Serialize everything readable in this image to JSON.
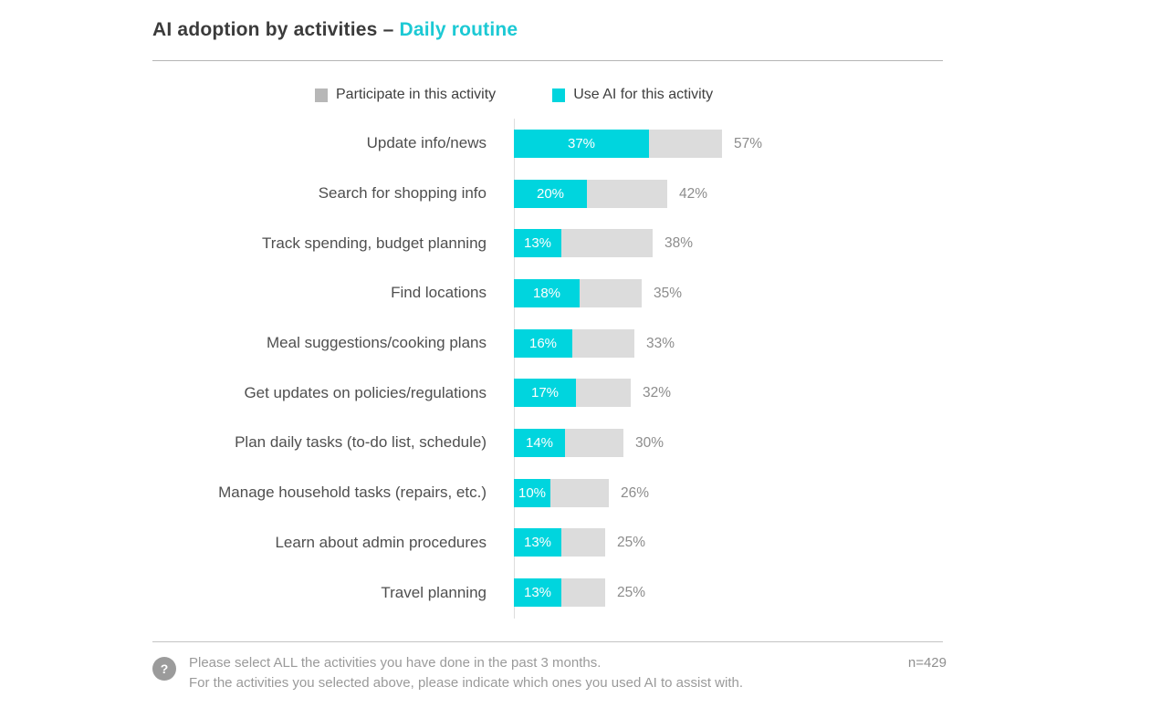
{
  "title": {
    "main": "AI adoption by activities –",
    "highlight": "Daily routine"
  },
  "legend": [
    {
      "label": "Participate in this activity",
      "color": "#b7b7b7"
    },
    {
      "label": "Use AI for this activity",
      "color": "#00d5de"
    }
  ],
  "chart_data": {
    "type": "bar",
    "orientation": "horizontal",
    "title": "AI adoption by activities – Daily routine",
    "xlabel": "",
    "ylabel": "",
    "xlim": [
      0,
      100
    ],
    "grid": false,
    "legend_position": "top",
    "value_suffix": "%",
    "categories": [
      "Update info/news",
      "Search for shopping info",
      "Track spending, budget planning",
      "Find locations",
      "Meal suggestions/cooking plans",
      "Get updates on policies/regulations",
      "Plan daily tasks (to-do list, schedule)",
      "Manage household tasks (repairs, etc.)",
      "Learn about admin procedures",
      "Travel planning"
    ],
    "series": [
      {
        "name": "Participate in this activity",
        "color": "#dcdcdc",
        "values": [
          57,
          42,
          38,
          35,
          33,
          32,
          30,
          26,
          25,
          25
        ]
      },
      {
        "name": "Use AI for this activity",
        "color": "#00d5de",
        "values": [
          37,
          20,
          13,
          18,
          16,
          17,
          14,
          10,
          13,
          13
        ]
      }
    ]
  },
  "footer": {
    "note_line1": "Please select ALL the activities you have done in the past 3 months.",
    "note_line2": "For the activities you selected above, please indicate which ones you used AI to assist with.",
    "question_mark": "?",
    "sample_size": "n=429"
  },
  "colors": {
    "accent_cyan": "#00d5de",
    "title_cyan": "#1cc9d4",
    "participate_gray": "#dcdcdc",
    "text_dark": "#3b3b3b",
    "text_muted": "#8c8c8c"
  }
}
